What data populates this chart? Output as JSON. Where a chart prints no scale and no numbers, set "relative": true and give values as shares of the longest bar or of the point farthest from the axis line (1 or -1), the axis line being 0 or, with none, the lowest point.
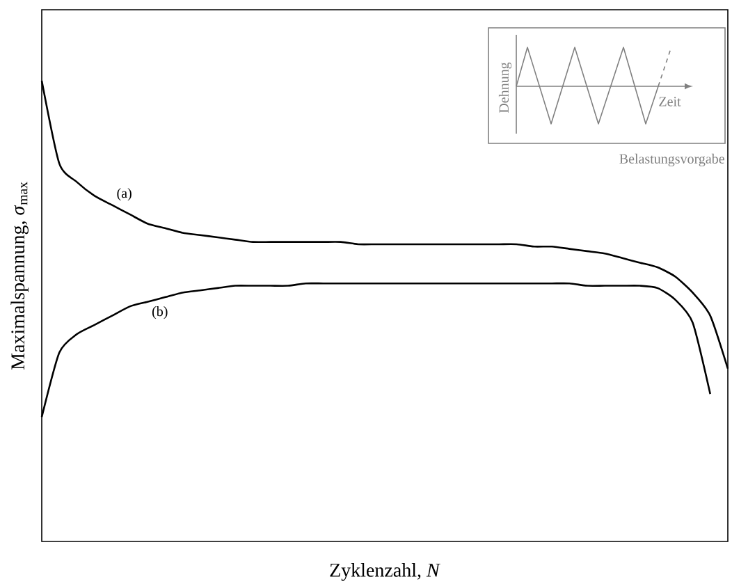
{
  "chart_data": {
    "type": "line",
    "relative": true,
    "tick_labels": false,
    "marker": "none",
    "xlabel": "Zyklenzahl, *N*",
    "ylabel": "Maximalspannung, *σ*$_{max}$",
    "categories": [
      null,
      null,
      null,
      null,
      null,
      null,
      null,
      null,
      null,
      null,
      null,
      null,
      null,
      null,
      null,
      null,
      null,
      null,
      null,
      null,
      null,
      null,
      null,
      null,
      null,
      null,
      null,
      null,
      null,
      null,
      null,
      null,
      null,
      null,
      null,
      null,
      null,
      null,
      null,
      null
    ],
    "series": [
      {
        "name": "(a)",
        "color": "#000000",
        "values": [
          1.0,
          0.82,
          0.78,
          0.75,
          0.73,
          0.71,
          0.69,
          0.68,
          0.67,
          0.665,
          0.66,
          0.655,
          0.65,
          0.65,
          0.65,
          0.65,
          0.65,
          0.65,
          0.645,
          0.645,
          0.645,
          0.645,
          0.645,
          0.645,
          0.645,
          0.645,
          0.645,
          0.645,
          0.64,
          0.64,
          0.635,
          0.63,
          0.625,
          0.615,
          0.605,
          0.595,
          0.575,
          0.54,
          0.49,
          0.375
        ]
      },
      {
        "name": "(b)",
        "color": "#000000",
        "values": [
          0.27,
          0.41,
          0.45,
          0.47,
          0.49,
          0.51,
          0.52,
          0.53,
          0.54,
          0.545,
          0.55,
          0.555,
          0.555,
          0.555,
          0.555,
          0.56,
          0.56,
          0.56,
          0.56,
          0.56,
          0.56,
          0.56,
          0.56,
          0.56,
          0.56,
          0.56,
          0.56,
          0.56,
          0.56,
          0.56,
          0.56,
          0.555,
          0.555,
          0.555,
          0.555,
          0.55,
          0.525,
          0.475,
          0.32,
          null
        ]
      }
    ],
    "annotations": [
      "Dehnung",
      "Zeit",
      "Belastungsvorgabe"
    ]
  }
}
